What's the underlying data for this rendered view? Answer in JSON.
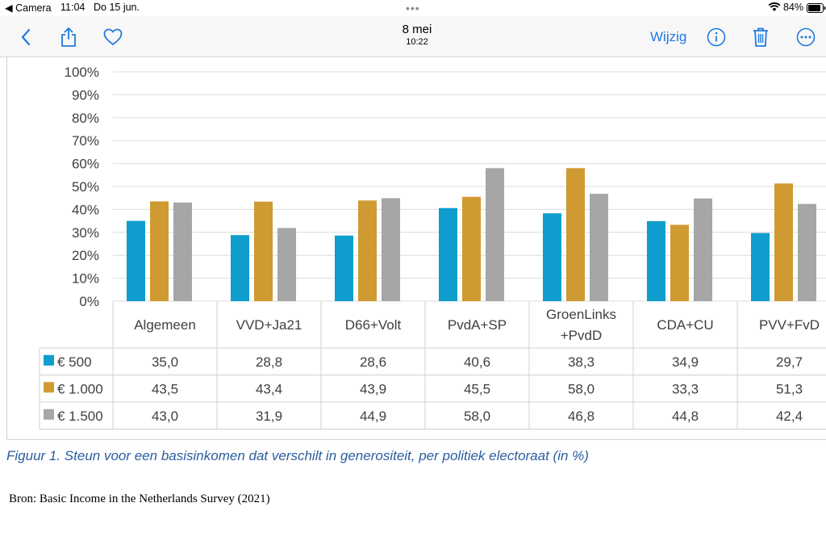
{
  "status_bar": {
    "back_app": "◀ Camera",
    "time": "11:04",
    "date": "Do 15 jun.",
    "battery": "84%"
  },
  "toolbar": {
    "title": "8 mei",
    "subtitle": "10:22",
    "edit_label": "Wijzig"
  },
  "chart_data": {
    "type": "bar",
    "ylim": [
      0,
      100
    ],
    "y_ticks": [
      "0%",
      "10%",
      "20%",
      "30%",
      "40%",
      "50%",
      "60%",
      "70%",
      "80%",
      "90%",
      "100%"
    ],
    "categories": [
      "Algemeen",
      "VVD+Ja21",
      "D66+Volt",
      "PvdA+SP",
      "GroenLinks +PvdD",
      "CDA+CU",
      "PVV+FvD"
    ],
    "category_lines": [
      [
        "Algemeen"
      ],
      [
        "VVD+Ja21"
      ],
      [
        "D66+Volt"
      ],
      [
        "PvdA+SP"
      ],
      [
        "GroenLinks",
        "+PvdD"
      ],
      [
        "CDA+CU"
      ],
      [
        "PVV+FvD"
      ]
    ],
    "series": [
      {
        "name": "€ 500",
        "color": "#0e9dcc",
        "values": [
          35.0,
          28.8,
          28.6,
          40.6,
          38.3,
          34.9,
          29.7
        ],
        "labels": [
          "35,0",
          "28,8",
          "28,6",
          "40,6",
          "38,3",
          "34,9",
          "29,7"
        ]
      },
      {
        "name": "€ 1.000",
        "color": "#cf9a32",
        "values": [
          43.5,
          43.4,
          43.9,
          45.5,
          58.0,
          33.3,
          51.3
        ],
        "labels": [
          "43,5",
          "43,4",
          "43,9",
          "45,5",
          "58,0",
          "33,3",
          "51,3"
        ]
      },
      {
        "name": "€ 1.500",
        "color": "#a6a6a6",
        "values": [
          43.0,
          31.9,
          44.9,
          58.0,
          46.8,
          44.8,
          42.4
        ],
        "labels": [
          "43,0",
          "31,9",
          "44,9",
          "58,0",
          "46,8",
          "44,8",
          "42,4"
        ]
      }
    ],
    "grid": true,
    "legend": "table-rows"
  },
  "caption": "Figuur 1. Steun voor een basisinkomen dat verschilt in generositeit, per politiek electoraat (in %)",
  "source": "Bron: Basic Income in the Netherlands Survey (2021)"
}
